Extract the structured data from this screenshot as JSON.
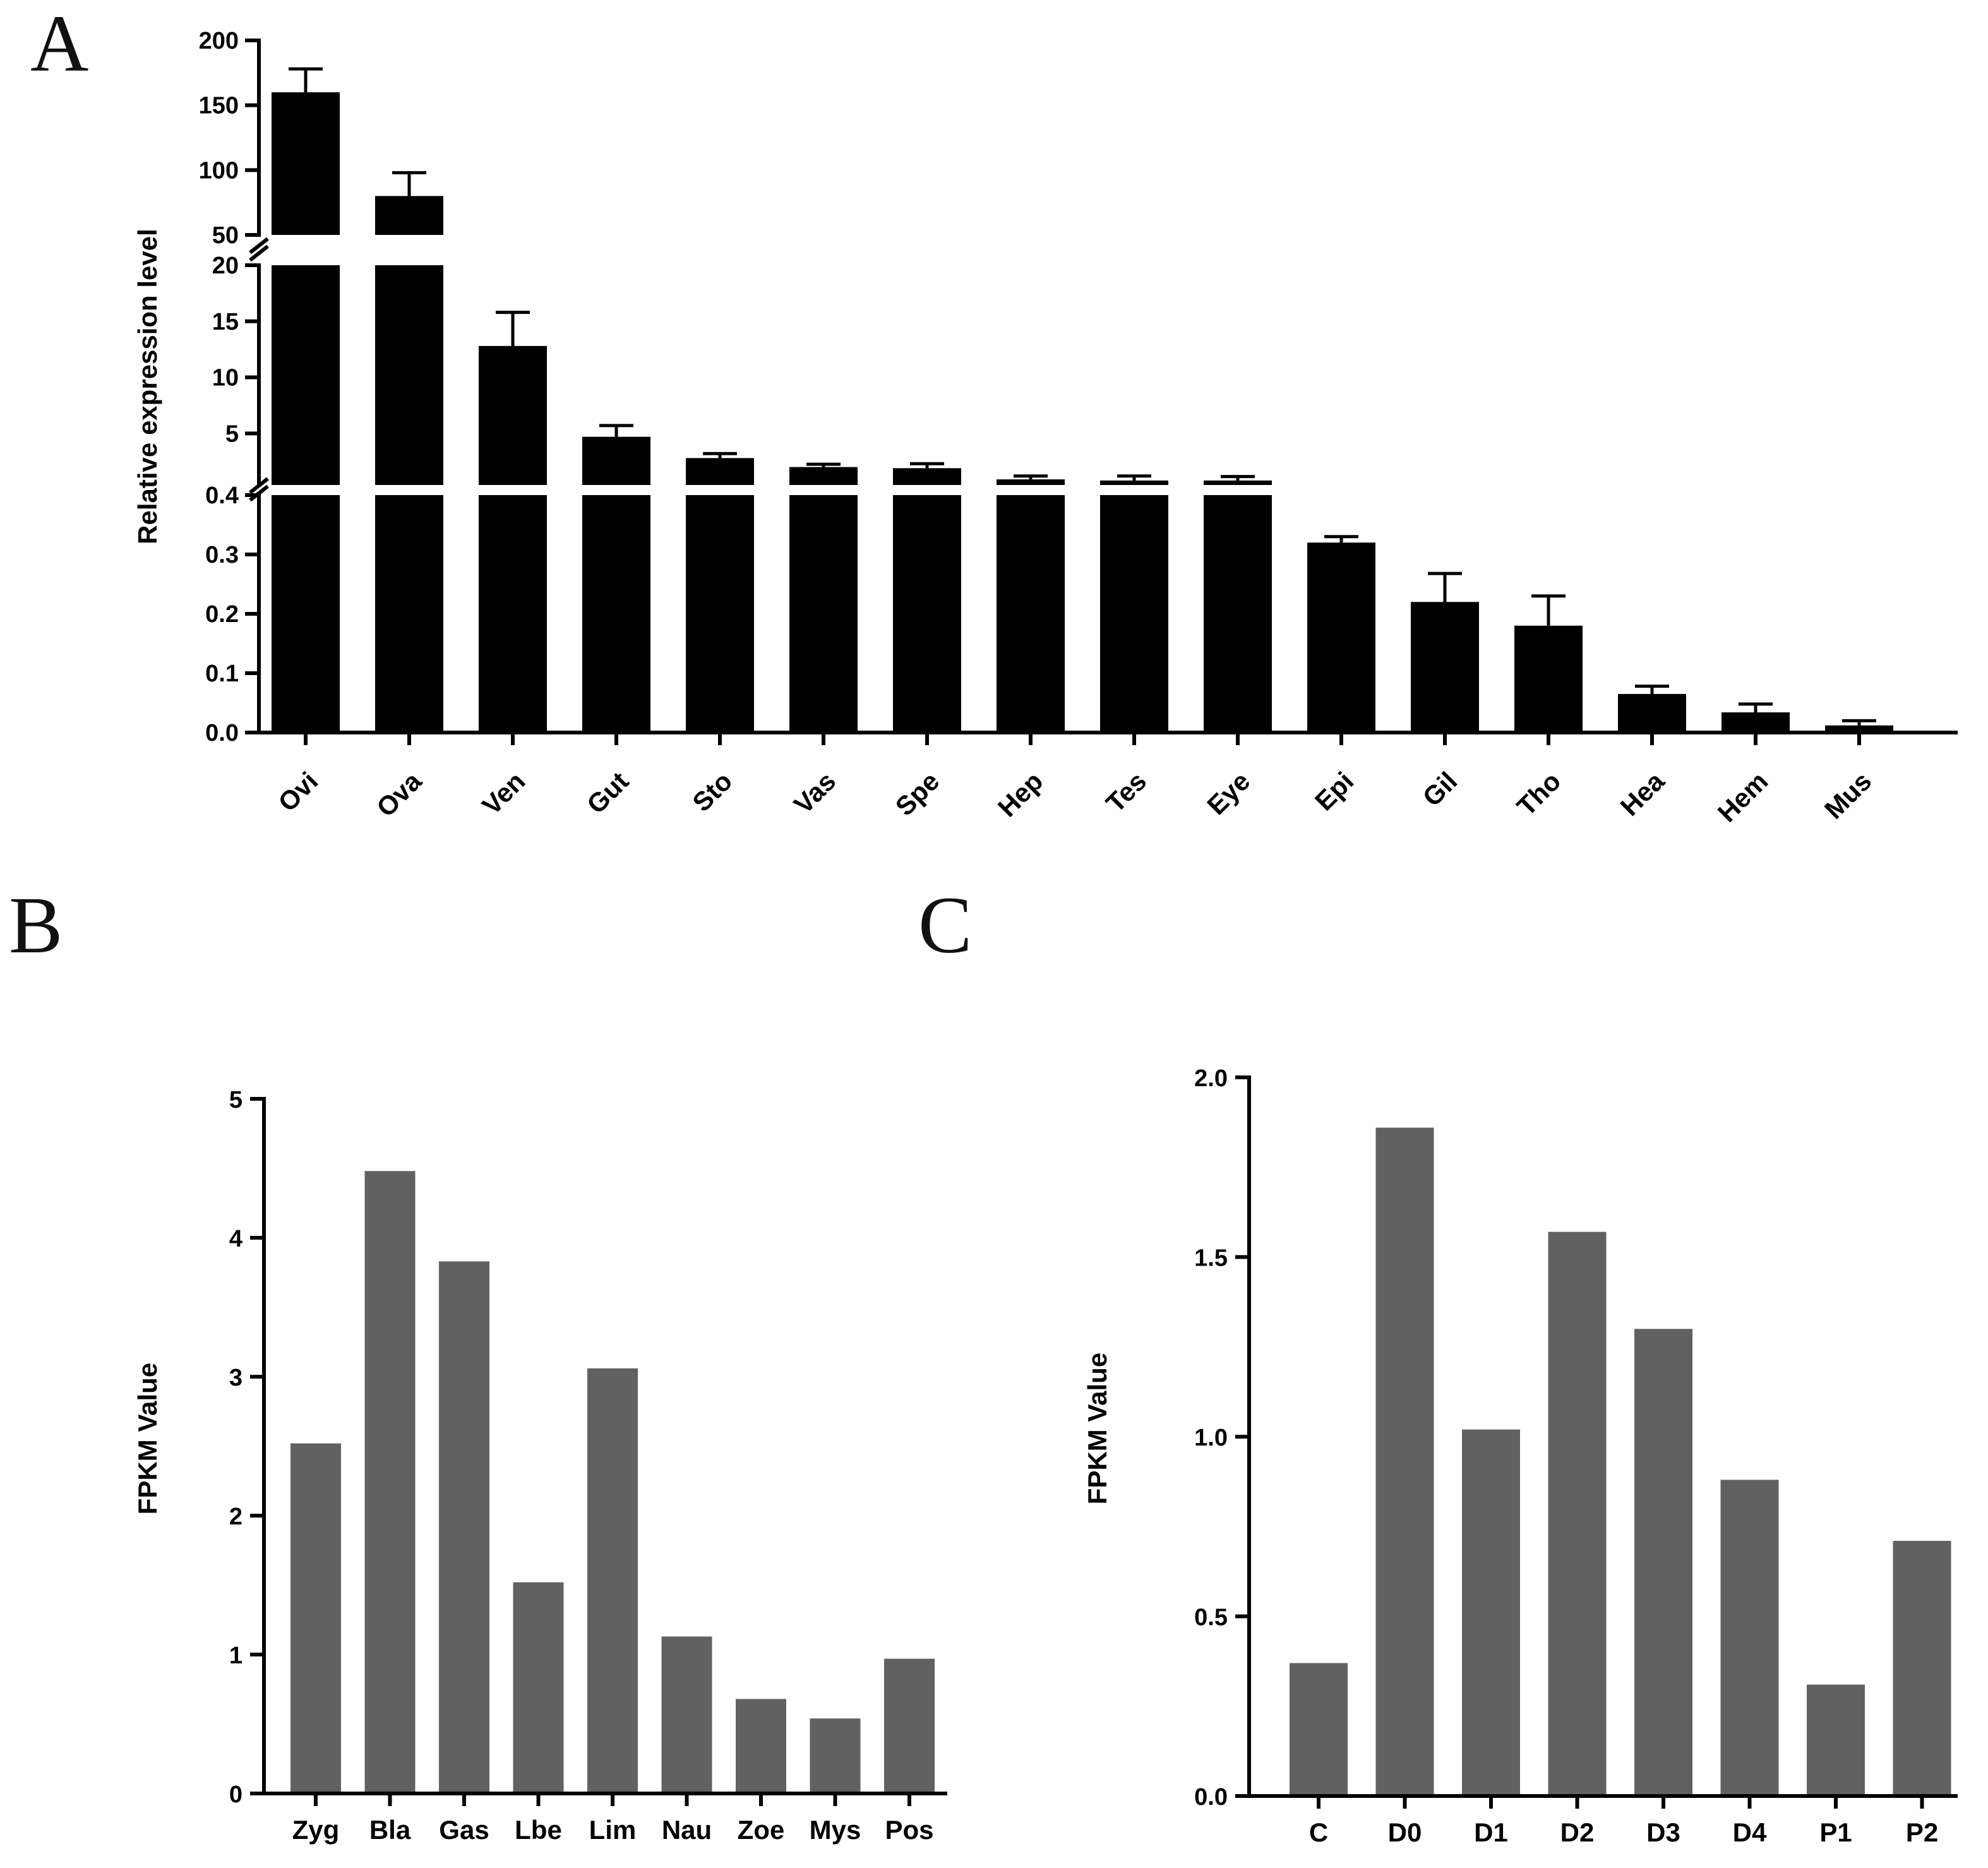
{
  "panels": {
    "a": "A",
    "b": "B",
    "c": "C"
  },
  "colors": {
    "bar_a": "#000000",
    "bar_bc": "#616161",
    "axis": "#000000"
  },
  "chart_data": [
    {
      "id": "A",
      "type": "bar",
      "broken_axis": true,
      "ylabel": "Relative expression level",
      "xlabel": "",
      "segments": [
        {
          "range": [
            0,
            0.4
          ],
          "ticks": [
            0.0,
            0.1,
            0.2,
            0.3,
            0.4
          ],
          "tick_labels": [
            "0.0",
            "0.1",
            "0.2",
            "0.3",
            "0.4"
          ]
        },
        {
          "range": [
            0.4,
            20
          ],
          "ticks": [
            5,
            10,
            15,
            20
          ],
          "tick_labels": [
            "5",
            "10",
            "15",
            "20"
          ]
        },
        {
          "range": [
            50,
            200
          ],
          "ticks": [
            50,
            100,
            150,
            200
          ],
          "tick_labels": [
            "50",
            "100",
            "150",
            "200"
          ]
        }
      ],
      "categories": [
        "Ovi",
        "Ova",
        "Ven",
        "Gut",
        "Sto",
        "Vas",
        "Spe",
        "Hep",
        "Tes",
        "Eye",
        "Epi",
        "Gil",
        "Tho",
        "Hea",
        "Hem",
        "Mus"
      ],
      "values": [
        160,
        80,
        12.8,
        4.7,
        2.8,
        2.0,
        1.9,
        0.9,
        0.8,
        0.8,
        0.32,
        0.22,
        0.18,
        0.065,
        0.034,
        0.012
      ],
      "errors": [
        18,
        18,
        3.0,
        1.0,
        0.4,
        0.25,
        0.4,
        0.3,
        0.4,
        0.35,
        0.01,
        0.048,
        0.05,
        0.013,
        0.014,
        0.008
      ]
    },
    {
      "id": "B",
      "type": "bar",
      "ylabel": "FPKM Value",
      "xlabel": "",
      "ylim": [
        0,
        5
      ],
      "ticks": [
        0,
        1,
        2,
        3,
        4,
        5
      ],
      "tick_labels": [
        "0",
        "1",
        "2",
        "3",
        "4",
        "5"
      ],
      "categories": [
        "Zyg",
        "Bla",
        "Gas",
        "Lbe",
        "Lim",
        "Nau",
        "Zoe",
        "Mys",
        "Pos"
      ],
      "values": [
        2.52,
        4.48,
        3.83,
        1.52,
        3.06,
        1.13,
        0.68,
        0.54,
        0.97
      ]
    },
    {
      "id": "C",
      "type": "bar",
      "ylabel": "FPKM Value",
      "xlabel": "",
      "ylim": [
        0,
        2.0
      ],
      "ticks": [
        0,
        0.5,
        1.0,
        1.5,
        2.0
      ],
      "tick_labels": [
        "0.0",
        "0.5",
        "1.0",
        "1.5",
        "2.0"
      ],
      "categories": [
        "C",
        "D0",
        "D1",
        "D2",
        "D3",
        "D4",
        "P1",
        "P2"
      ],
      "values": [
        0.37,
        1.86,
        1.02,
        1.57,
        1.3,
        0.88,
        0.31,
        0.71
      ]
    }
  ]
}
